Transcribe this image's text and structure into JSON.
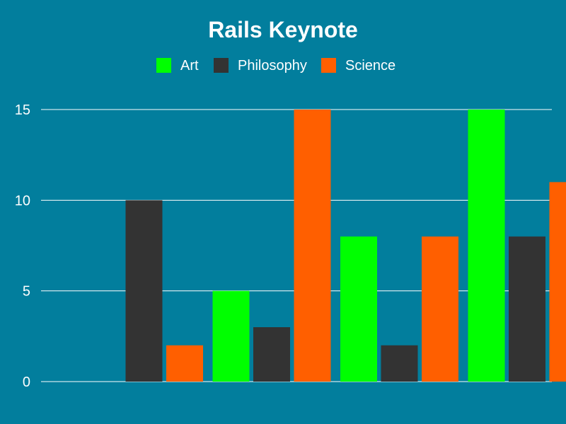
{
  "chart_data": {
    "type": "bar",
    "title": "Rails Keynote",
    "xlabel": "",
    "ylabel": "",
    "categories": [
      "",
      "",
      "",
      ""
    ],
    "series": [
      {
        "name": "Art",
        "color": "#00FF00",
        "values": [
          0,
          5,
          8,
          15
        ]
      },
      {
        "name": "Philosophy",
        "color": "#333333",
        "values": [
          10,
          3,
          2,
          8
        ]
      },
      {
        "name": "Science",
        "color": "#FF5F00",
        "values": [
          2,
          15,
          8,
          11
        ]
      }
    ],
    "ylim": [
      0,
      15
    ],
    "yticks": [
      "0",
      "5",
      "10",
      "15"
    ],
    "grid": true,
    "legend_position": "top-center",
    "background": "#027E9D",
    "gridline_color": "#FFFFFF"
  }
}
